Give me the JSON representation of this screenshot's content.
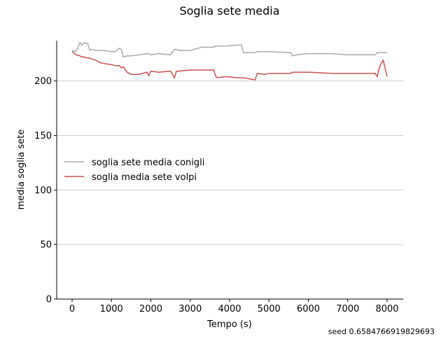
{
  "chart_data": {
    "type": "line",
    "title": "Soglia sete media",
    "xlabel": "Tempo (s)",
    "ylabel": "media soglia sete",
    "annotation": "seed 0.6584766919829693",
    "x": [
      0,
      100,
      200,
      250,
      300,
      400,
      450,
      500,
      600,
      700,
      800,
      1000,
      1100,
      1200,
      1250,
      1300,
      1400,
      1500,
      1700,
      1900,
      1950,
      2000,
      2200,
      2500,
      2600,
      2650,
      2700,
      3000,
      3200,
      3300,
      3600,
      3650,
      3700,
      3900,
      4200,
      4300,
      4350,
      4500,
      4650,
      4700,
      4900,
      5000,
      5500,
      5550,
      5600,
      5700,
      6000,
      6600,
      7000,
      7500,
      7700,
      7750,
      7800,
      7850,
      7900,
      7950,
      8000
    ],
    "series": [
      {
        "name": "soglia sete media conigli",
        "color": "#aaaaaa",
        "values": [
          228,
          227,
          235,
          233,
          235,
          234,
          228,
          229,
          228,
          228,
          228,
          227,
          227,
          230,
          229,
          222,
          223,
          223,
          224,
          225,
          225,
          224,
          225,
          224,
          229,
          229,
          228,
          228,
          230,
          231,
          231,
          232,
          232,
          232,
          233,
          233,
          226,
          226,
          226,
          227,
          227,
          227,
          226,
          226,
          223,
          224,
          225,
          225,
          224,
          224,
          224,
          226,
          226,
          226,
          226,
          226,
          226
        ]
      },
      {
        "name": "soglia media sete volpi",
        "color": "#c85250",
        "values": [
          227,
          224,
          223,
          222,
          222,
          221,
          221,
          220,
          219,
          217,
          216,
          215,
          214,
          214,
          212,
          213,
          208,
          206,
          206,
          208,
          205,
          209,
          208,
          209,
          203,
          209,
          209,
          210,
          210,
          210,
          210,
          204,
          203,
          204,
          203,
          203,
          203,
          202,
          201,
          207,
          206,
          207,
          207,
          207,
          208,
          208,
          208,
          207,
          207,
          207,
          207,
          204,
          212,
          216,
          219,
          212,
          204
        ]
      }
    ],
    "xlim": [
      -391,
      8409
    ],
    "ylim": [
      0,
      237
    ],
    "xticks": [
      0,
      1000,
      2000,
      3000,
      4000,
      5000,
      6000,
      7000,
      8000
    ],
    "yticks": [
      0,
      50,
      100,
      150,
      200
    ],
    "grid": true,
    "legend": "center left"
  }
}
